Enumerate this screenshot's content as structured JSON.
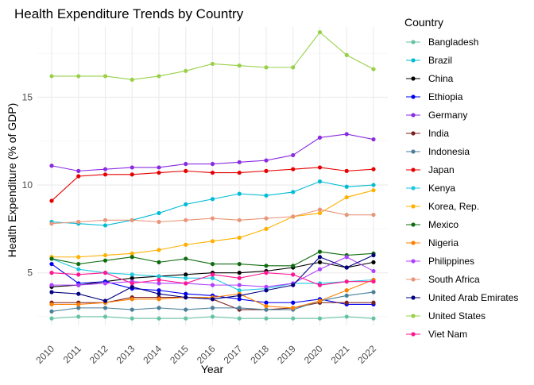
{
  "chart_data": {
    "type": "line",
    "title": "Health Expenditure Trends by Country",
    "xlabel": "Year",
    "ylabel": "Health Expenditure (% of GDP)",
    "x": [
      2010,
      2011,
      2012,
      2013,
      2014,
      2015,
      2016,
      2017,
      2018,
      2019,
      2020,
      2021,
      2022
    ],
    "xlim": [
      2010,
      2022
    ],
    "ylim": [
      2.0,
      19.0
    ],
    "yticks": [
      5,
      10,
      15
    ],
    "grid": true,
    "legend": {
      "title": "Country",
      "position": "right"
    },
    "series": [
      {
        "name": "Bangladesh",
        "color": "#66c2a5",
        "values": [
          2.4,
          2.5,
          2.5,
          2.4,
          2.4,
          2.4,
          2.5,
          2.4,
          2.4,
          2.4,
          2.4,
          2.5,
          2.4
        ]
      },
      {
        "name": "Brazil",
        "color": "#00bcd4",
        "values": [
          7.9,
          7.8,
          7.7,
          8.0,
          8.4,
          8.9,
          9.2,
          9.5,
          9.4,
          9.6,
          10.2,
          9.9,
          10.0
        ]
      },
      {
        "name": "China",
        "color": "#000000",
        "values": [
          4.2,
          4.3,
          4.5,
          4.7,
          4.8,
          4.9,
          5.0,
          5.0,
          5.1,
          5.3,
          5.6,
          5.3,
          5.6
        ]
      },
      {
        "name": "Ethiopia",
        "color": "#0000ee",
        "values": [
          5.5,
          4.4,
          4.5,
          4.1,
          4.0,
          3.8,
          3.7,
          3.5,
          3.3,
          3.3,
          3.5,
          3.2,
          3.2
        ]
      },
      {
        "name": "Germany",
        "color": "#8a2be2",
        "values": [
          11.1,
          10.8,
          10.9,
          11.0,
          11.0,
          11.2,
          11.2,
          11.3,
          11.4,
          11.7,
          12.7,
          12.9,
          12.6
        ]
      },
      {
        "name": "India",
        "color": "#7b1f1f",
        "values": [
          3.3,
          3.3,
          3.3,
          3.6,
          3.6,
          3.6,
          3.5,
          2.9,
          2.9,
          3.0,
          3.3,
          3.3,
          3.3
        ]
      },
      {
        "name": "Indonesia",
        "color": "#4a7f9a",
        "values": [
          2.8,
          3.0,
          3.0,
          2.9,
          3.0,
          2.9,
          3.0,
          3.0,
          2.9,
          2.9,
          3.4,
          3.7,
          3.9
        ]
      },
      {
        "name": "Japan",
        "color": "#e60000",
        "values": [
          9.1,
          10.5,
          10.6,
          10.6,
          10.7,
          10.8,
          10.7,
          10.7,
          10.8,
          10.9,
          11.0,
          10.8,
          10.9
        ]
      },
      {
        "name": "Kenya",
        "color": "#1ec8e0",
        "values": [
          5.8,
          5.2,
          5.0,
          4.9,
          4.8,
          4.7,
          4.7,
          4.0,
          4.1,
          4.4,
          4.4,
          4.5,
          4.6
        ]
      },
      {
        "name": "Korea, Rep.",
        "color": "#ffb000",
        "values": [
          5.9,
          5.9,
          6.0,
          6.1,
          6.3,
          6.6,
          6.8,
          7.0,
          7.5,
          8.2,
          8.4,
          9.3,
          9.7
        ]
      },
      {
        "name": "Mexico",
        "color": "#0f6b0f",
        "values": [
          5.8,
          5.5,
          5.7,
          5.9,
          5.6,
          5.8,
          5.5,
          5.5,
          5.4,
          5.4,
          6.2,
          6.0,
          6.1
        ]
      },
      {
        "name": "Nigeria",
        "color": "#ff8000",
        "values": [
          3.2,
          3.2,
          3.3,
          3.5,
          3.5,
          3.6,
          3.6,
          3.8,
          3.1,
          3.0,
          3.4,
          4.0,
          4.6
        ]
      },
      {
        "name": "Philippines",
        "color": "#b040ff",
        "values": [
          4.3,
          4.3,
          4.4,
          4.5,
          4.4,
          4.4,
          4.3,
          4.3,
          4.2,
          4.4,
          5.2,
          5.9,
          5.1
        ]
      },
      {
        "name": "South Africa",
        "color": "#e8967a",
        "values": [
          7.8,
          7.9,
          8.0,
          8.0,
          7.9,
          8.0,
          8.1,
          8.0,
          8.1,
          8.2,
          8.6,
          8.3,
          8.3
        ]
      },
      {
        "name": "United Arab Emirates",
        "color": "#000080",
        "values": [
          3.9,
          3.8,
          3.4,
          4.2,
          3.8,
          3.6,
          3.5,
          3.7,
          4.0,
          4.3,
          5.9,
          5.3,
          6.0
        ]
      },
      {
        "name": "United States",
        "color": "#98d04a",
        "values": [
          16.2,
          16.2,
          16.2,
          16.0,
          16.2,
          16.5,
          16.9,
          16.8,
          16.7,
          16.7,
          18.7,
          17.4,
          16.6
        ]
      },
      {
        "name": "Viet Nam",
        "color": "#ff1493",
        "values": [
          5.0,
          4.9,
          5.0,
          4.4,
          4.6,
          4.4,
          4.9,
          4.7,
          5.0,
          4.9,
          4.3,
          4.5,
          4.5
        ]
      }
    ]
  }
}
